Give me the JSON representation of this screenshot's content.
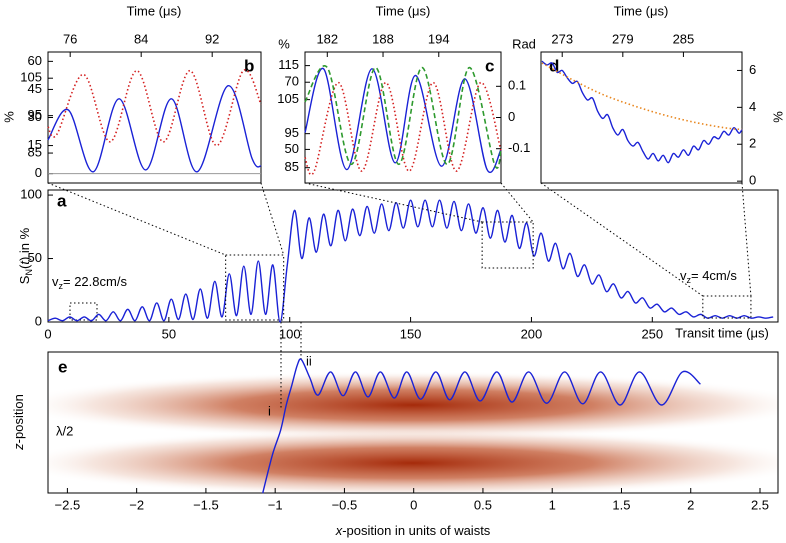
{
  "chart_data": [
    {
      "type": "line",
      "label": "a",
      "ylabel": [
        "S",
        "N",
        "(",
        "t",
        ") in %"
      ],
      "xlabel": "Transit time (μs)",
      "annotations": [
        [
          "v",
          "z",
          "= 22.8cm/s"
        ],
        [
          "v",
          "z",
          "= 4cm/s"
        ]
      ],
      "xlim": [
        0,
        302
      ],
      "xticks": [
        0,
        50,
        100,
        150,
        200,
        250
      ],
      "ylim": [
        0,
        104
      ],
      "yticks": [
        0,
        50,
        100
      ],
      "series": [
        {
          "color": "#1a22d6",
          "linestyle": "solid",
          "x": [
            0,
            3,
            6,
            9,
            12,
            15,
            18,
            21,
            24,
            27,
            30,
            33,
            36,
            39,
            42,
            45,
            48,
            51,
            54,
            57,
            60,
            63,
            66,
            69,
            72,
            75,
            78,
            81,
            84,
            87,
            90,
            93,
            96,
            99,
            102,
            105,
            108,
            111,
            114,
            117,
            120,
            123,
            126,
            129,
            132,
            135,
            138,
            141,
            144,
            147,
            150,
            153,
            156,
            159,
            162,
            165,
            168,
            171,
            174,
            177,
            180,
            183,
            186,
            189,
            192,
            195,
            198,
            201,
            204,
            207,
            210,
            213,
            216,
            219,
            222,
            225,
            228,
            231,
            234,
            237,
            240,
            243,
            246,
            249,
            252,
            255,
            258,
            261,
            264,
            267,
            270,
            273,
            276,
            279,
            282,
            285,
            288,
            291,
            294,
            297,
            300
          ],
          "values": [
            1,
            3,
            1,
            4,
            1,
            4,
            1,
            6,
            1,
            8,
            1,
            10,
            1,
            12,
            1,
            15,
            1,
            18,
            2,
            22,
            2,
            26,
            3,
            32,
            4,
            38,
            5,
            44,
            6,
            48,
            6,
            45,
            0,
            45,
            88,
            50,
            82,
            55,
            85,
            60,
            88,
            64,
            89,
            68,
            91,
            70,
            93,
            72,
            94,
            74,
            96,
            75,
            96,
            75,
            96,
            74,
            95,
            72,
            93,
            70,
            90,
            66,
            88,
            63,
            84,
            58,
            78,
            52,
            70,
            48,
            62,
            42,
            54,
            36,
            45,
            30,
            37,
            24,
            30,
            19,
            24,
            15,
            19,
            11,
            14,
            8,
            11,
            6,
            8,
            4,
            6,
            3,
            5,
            3,
            5,
            3,
            5,
            3,
            4,
            3,
            4
          ]
        }
      ]
    },
    {
      "type": "line",
      "label": "b",
      "top_xlabel": "Time (μs)",
      "ylabel": "%",
      "xlim": [
        73.5,
        97.5
      ],
      "xticks": [
        76,
        84,
        92
      ],
      "ylim": [
        -5,
        65
      ],
      "yticks": [
        0,
        15,
        30,
        45,
        60
      ],
      "y2lim": [
        77,
        112
      ],
      "y2ticks": [
        85,
        95,
        105
      ],
      "series": [
        {
          "color": "#1a22d6",
          "linestyle": "solid",
          "x": [
            73.5,
            75.8,
            78.6,
            81.5,
            84.5,
            87.4,
            90.3,
            93.8,
            96.5,
            97.5
          ],
          "values": [
            18,
            34,
            1,
            40,
            2,
            40,
            1,
            47,
            8,
            4
          ]
        },
        {
          "color": "#d42020",
          "linestyle": "dotted",
          "axis": "y2",
          "x": [
            73.5,
            74.5,
            77.5,
            80.5,
            83.5,
            86.5,
            89.5,
            92.5,
            95.5,
            97.5
          ],
          "values": [
            92,
            90,
            106,
            88,
            107,
            88,
            107,
            87,
            107,
            98
          ]
        }
      ]
    },
    {
      "type": "line",
      "label": "c",
      "top_xlabel": "Time (μs)",
      "ylabel": "%",
      "y3label": "Rad",
      "xlim": [
        179.6,
        200.7
      ],
      "xticks": [
        182,
        188,
        194
      ],
      "ylim": [
        40,
        79
      ],
      "yticks": [
        50,
        70
      ],
      "y2lim": [
        80.5,
        119
      ],
      "y2ticks": [
        85,
        95,
        105,
        115
      ],
      "y3lim": [
        -0.21,
        0.21
      ],
      "y3ticks": [
        -0.1,
        0,
        0.1
      ],
      "series": [
        {
          "color": "#1a22d6",
          "linestyle": "solid",
          "x": [
            179.6,
            181.6,
            184.1,
            186.8,
            189.3,
            191.5,
            194.3,
            196.8,
            199.2,
            200.7
          ],
          "values": [
            55,
            74,
            44,
            74,
            46,
            72,
            45,
            71,
            44,
            50
          ]
        },
        {
          "color": "#d42020",
          "linestyle": "dotted",
          "axis": "y2",
          "x": [
            179.6,
            180.6,
            183.2,
            185.7,
            188.3,
            190.8,
            193.4,
            195.9,
            198.5,
            200.7
          ],
          "values": [
            88,
            84,
            110,
            84,
            110,
            84,
            110,
            84,
            110,
            90
          ]
        },
        {
          "color": "#2e9a2e",
          "linestyle": "dashed",
          "axis": "y3",
          "x": [
            179.6,
            182.0,
            184.6,
            187.2,
            189.7,
            192.2,
            194.9,
            197.3,
            200.0,
            200.7
          ],
          "values": [
            0.05,
            0.16,
            -0.15,
            0.16,
            -0.15,
            0.16,
            -0.15,
            0.16,
            -0.15,
            -0.1
          ]
        }
      ]
    },
    {
      "type": "line",
      "label": "d",
      "top_xlabel": "Time (μs)",
      "ylabel": "%",
      "xlim": [
        270.9,
        290.8
      ],
      "xticks": [
        273,
        279,
        285
      ],
      "ylim": [
        -0.1,
        7
      ],
      "yticks": [
        0,
        2,
        4,
        6
      ],
      "yaxis_side": "right",
      "series": [
        {
          "color": "#1a22d6",
          "linestyle": "solid",
          "x": [
            271,
            271.5,
            272,
            272.5,
            273,
            273.5,
            274,
            274.5,
            275,
            275.5,
            276,
            276.5,
            277,
            277.5,
            278,
            278.5,
            279,
            279.5,
            280,
            280.5,
            281,
            281.5,
            282,
            282.5,
            283,
            283.5,
            284,
            284.5,
            285,
            285.5,
            286,
            286.5,
            287,
            287.5,
            288,
            288.5,
            289,
            289.5,
            290,
            290.5,
            290.8
          ],
          "values": [
            6.5,
            6.3,
            6.4,
            5.9,
            6.0,
            5.6,
            5.3,
            5.4,
            4.8,
            4.4,
            4.5,
            3.8,
            3.4,
            3.6,
            2.9,
            2.5,
            2.8,
            2.2,
            1.9,
            2.1,
            1.6,
            1.2,
            1.5,
            1.1,
            1.4,
            1.0,
            1.5,
            1.3,
            1.7,
            1.4,
            1.9,
            1.7,
            2.2,
            2.0,
            2.4,
            2.3,
            2.7,
            2.5,
            2.9,
            2.6,
            2.8
          ]
        },
        {
          "color": "#e8861e",
          "linestyle": "dotted",
          "x": [
            271,
            274,
            277,
            280,
            283,
            286,
            289,
            290.8
          ],
          "values": [
            6.4,
            5.5,
            4.7,
            4.1,
            3.6,
            3.2,
            2.9,
            2.8
          ]
        }
      ]
    },
    {
      "type": "trajectory",
      "label": "e",
      "xlabel": [
        "x",
        "-position in units of waists"
      ],
      "ylabel": [
        "z",
        "-position"
      ],
      "annotations": [
        "λ/2",
        "i",
        "ii"
      ],
      "xlim": [
        -2.64,
        2.63
      ],
      "xticks": [
        {
          "value": -2.5,
          "label": "−2.5"
        },
        {
          "value": -2,
          "label": "−2"
        },
        {
          "value": -1.5,
          "label": "−1.5"
        },
        {
          "value": -1,
          "label": "−1"
        },
        {
          "value": -0.5,
          "label": "−0.5"
        },
        0,
        0.5,
        1,
        1.5,
        2,
        2.5
      ],
      "series": [
        {
          "color": "#1a22d6",
          "linestyle": "solid",
          "x": [
            -1.09,
            -1.02,
            -0.96,
            -0.92,
            -0.88,
            -0.84,
            -0.81,
            -0.75,
            -0.69,
            -0.6,
            -0.51,
            -0.42,
            -0.33,
            -0.24,
            -0.14,
            -0.05,
            0.05,
            0.16,
            0.26,
            0.37,
            0.48,
            0.6,
            0.71,
            0.83,
            0.96,
            1.09,
            1.22,
            1.35,
            1.49,
            1.63,
            1.79,
            1.94,
            2.07
          ],
          "values": [
            -0.52,
            0.14,
            0.57,
            1.0,
            1.34,
            1.69,
            1.78,
            1.47,
            1.17,
            1.57,
            1.16,
            1.57,
            1.14,
            1.57,
            1.12,
            1.57,
            1.1,
            1.57,
            1.09,
            1.57,
            1.07,
            1.57,
            1.05,
            1.57,
            1.03,
            1.57,
            1.02,
            1.57,
            1.0,
            1.57,
            1.0,
            1.57,
            1.36
          ]
        }
      ]
    }
  ]
}
